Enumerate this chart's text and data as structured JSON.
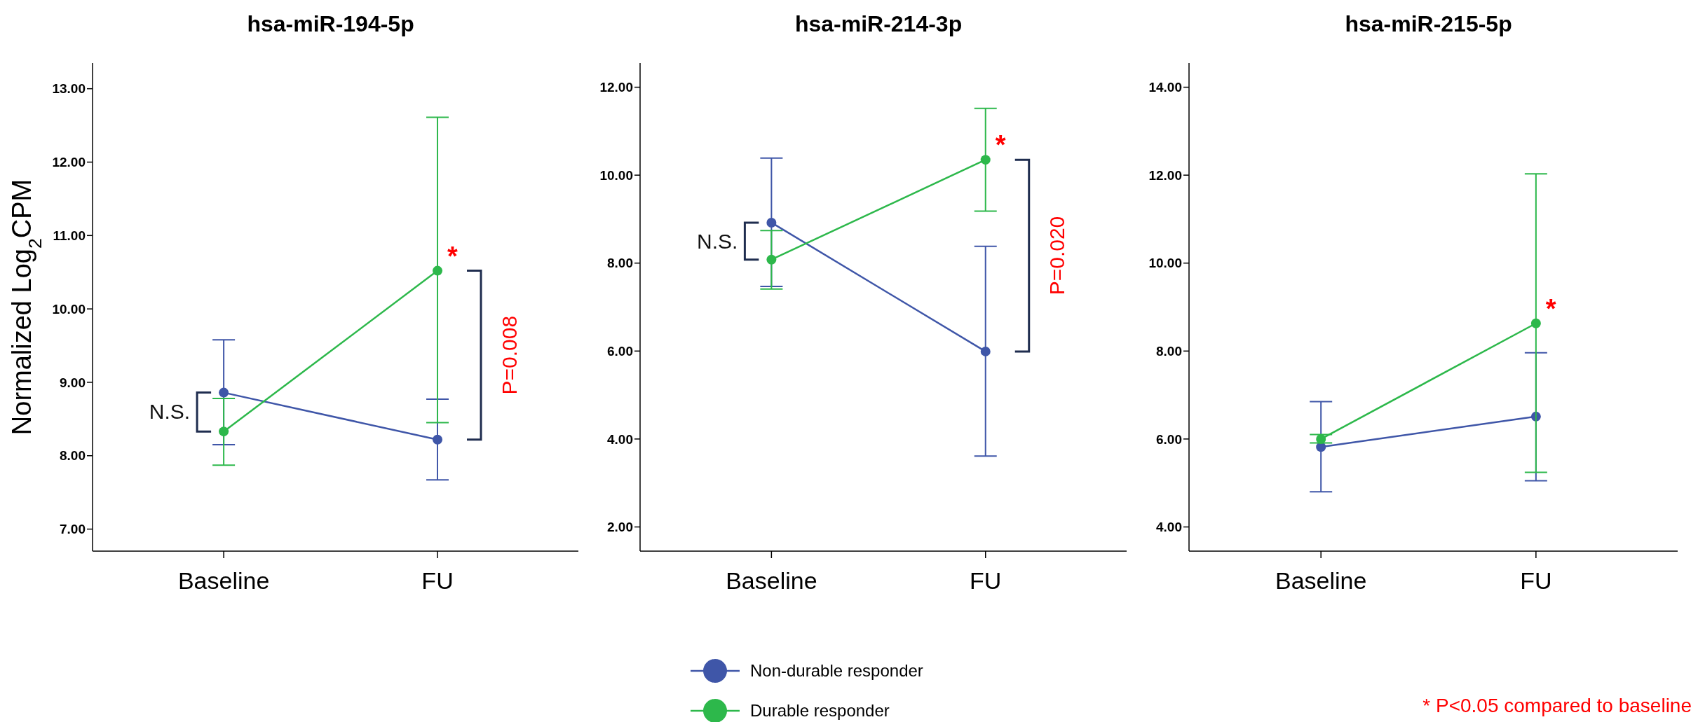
{
  "chart_data": [
    {
      "type": "line",
      "title": "hsa-miR-194-5p",
      "ylabel": "Normalized Log$_{2}$CPM",
      "categories": [
        "Baseline",
        "FU"
      ],
      "ylim": [
        6.7,
        13.35
      ],
      "yticks": [
        {
          "value": 7,
          "label": "7.00"
        },
        {
          "value": 8,
          "label": "8.00"
        },
        {
          "value": 9,
          "label": "9.00"
        },
        {
          "value": 10,
          "label": "10.00"
        },
        {
          "value": 11,
          "label": "11.00"
        },
        {
          "value": 12,
          "label": "12.00"
        },
        {
          "value": 13,
          "label": "13.00"
        }
      ],
      "marker": "circle",
      "grid": false,
      "legend": "bottom",
      "series": [
        {
          "name": "Non-durable responder",
          "color": "#3f56a8",
          "values": [
            8.86,
            8.22
          ],
          "errors": [
            [
              8.15,
              9.58
            ],
            [
              7.67,
              8.77
            ]
          ]
        },
        {
          "name": "Durable responder",
          "color": "#2db84b",
          "values": [
            8.33,
            10.52
          ],
          "errors": [
            [
              7.87,
              8.78
            ],
            [
              8.45,
              12.61
            ]
          ]
        }
      ],
      "annotations": [
        {
          "text": "N.S.",
          "x": "Baseline",
          "y": 8.6
        },
        {
          "text": "P=0.008",
          "x": "FU",
          "y": 9.37
        },
        {
          "text": "*",
          "x": "FU",
          "y": 10.52
        }
      ]
    },
    {
      "type": "line",
      "title": "hsa-miR-214-3p",
      "categories": [
        "Baseline",
        "FU"
      ],
      "ylim": [
        1.45,
        12.55
      ],
      "yticks": [
        {
          "value": 2,
          "label": "2.00"
        },
        {
          "value": 4,
          "label": "4.00"
        },
        {
          "value": 6,
          "label": "6.00"
        },
        {
          "value": 8,
          "label": "8.00"
        },
        {
          "value": 10,
          "label": "10.00"
        },
        {
          "value": 12,
          "label": "12.00"
        }
      ],
      "marker": "circle",
      "grid": false,
      "series": [
        {
          "color": "#3f56a8",
          "values": [
            8.92,
            5.99
          ],
          "errors": [
            [
              7.47,
              10.39
            ],
            [
              3.61,
              8.38
            ]
          ]
        },
        {
          "color": "#2db84b",
          "values": [
            8.08,
            10.35
          ],
          "errors": [
            [
              7.41,
              8.74
            ],
            [
              9.18,
              11.52
            ]
          ]
        }
      ],
      "annotations": [
        {
          "text": "N.S.",
          "x": "Baseline",
          "y": 8.5
        },
        {
          "text": "P=0.020",
          "x": "FU",
          "y": 8.17
        },
        {
          "text": "*",
          "x": "FU",
          "y": 10.35
        }
      ]
    },
    {
      "type": "line",
      "title": "hsa-miR-215-5p",
      "categories": [
        "Baseline",
        "FU"
      ],
      "ylim": [
        3.45,
        14.55
      ],
      "yticks": [
        {
          "value": 4,
          "label": "4.00"
        },
        {
          "value": 6,
          "label": "6.00"
        },
        {
          "value": 8,
          "label": "8.00"
        },
        {
          "value": 10,
          "label": "10.00"
        },
        {
          "value": 12,
          "label": "12.00"
        },
        {
          "value": 14,
          "label": "14.00"
        }
      ],
      "marker": "circle",
      "grid": false,
      "series": [
        {
          "color": "#3f56a8",
          "values": [
            5.82,
            6.51
          ],
          "errors": [
            [
              4.8,
              6.85
            ],
            [
              5.05,
              7.96
            ]
          ]
        },
        {
          "color": "#2db84b",
          "values": [
            6.0,
            8.63
          ],
          "errors": [
            [
              5.91,
              6.1
            ],
            [
              5.24,
              12.03
            ]
          ]
        }
      ],
      "annotations": [
        {
          "text": "*",
          "x": "FU",
          "y": 8.63
        },
        "* P<0.05 compared to baseline"
      ]
    }
  ]
}
